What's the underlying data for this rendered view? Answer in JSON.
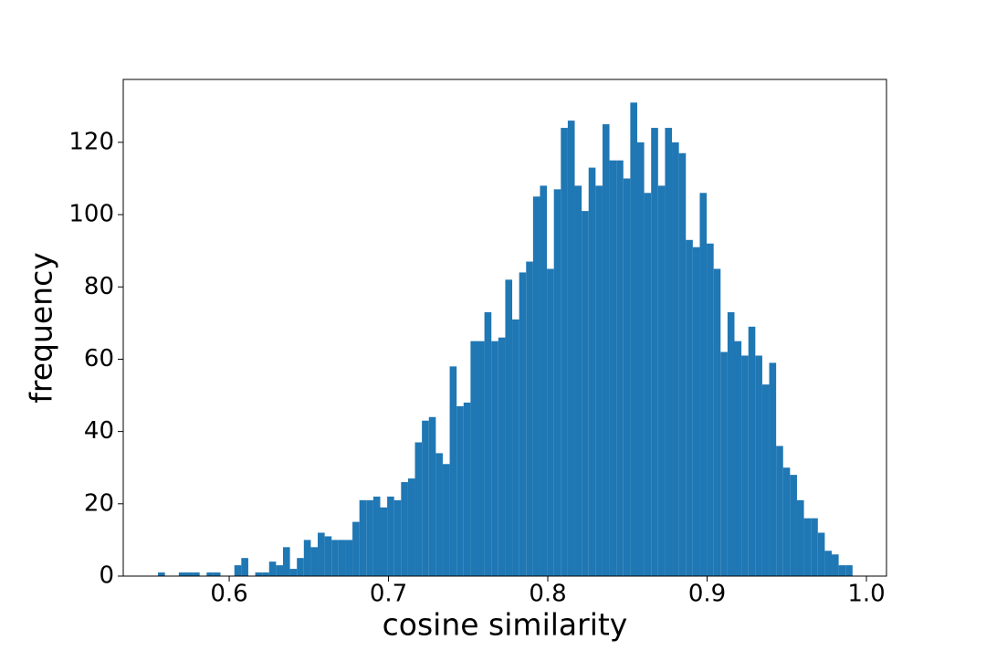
{
  "chart_data": {
    "type": "histogram",
    "xlabel": "cosine similarity",
    "ylabel": "frequency",
    "color": "#1f77b4",
    "grid": false,
    "bins": [
      0.5553,
      0.55966,
      0.56402,
      0.56838,
      0.57274,
      0.5771,
      0.58146,
      0.58582,
      0.59018,
      0.59454,
      0.5989,
      0.60326,
      0.60762,
      0.61198,
      0.61634,
      0.6207,
      0.62506,
      0.62942,
      0.63378,
      0.63814,
      0.6425,
      0.64686,
      0.65122,
      0.65558,
      0.65994,
      0.6643,
      0.66866,
      0.67302,
      0.67738,
      0.68174,
      0.6861,
      0.69046,
      0.69482,
      0.69918,
      0.70354,
      0.7079,
      0.71226,
      0.71662,
      0.72098,
      0.72534,
      0.7297,
      0.73406,
      0.73842,
      0.74278,
      0.74714,
      0.7515,
      0.75586,
      0.76022,
      0.76458,
      0.76894,
      0.7733,
      0.77766,
      0.78202,
      0.78638,
      0.79074,
      0.7951,
      0.79946,
      0.80382,
      0.80818,
      0.81254,
      0.8169,
      0.82126,
      0.82562,
      0.82998,
      0.83434,
      0.8387,
      0.84306,
      0.84742,
      0.85178,
      0.85614,
      0.8605,
      0.86486,
      0.86922,
      0.87358,
      0.87794,
      0.8823,
      0.88666,
      0.89102,
      0.89538,
      0.89974,
      0.9041,
      0.90846,
      0.91282,
      0.91718,
      0.92154,
      0.9259,
      0.93026,
      0.93462,
      0.93898,
      0.94334,
      0.9477,
      0.95206,
      0.95642,
      0.96078,
      0.96514,
      0.9695,
      0.97386,
      0.97822,
      0.98258,
      0.98694,
      0.9913
    ],
    "values": [
      1,
      0,
      0,
      1,
      1,
      1,
      0,
      1,
      1,
      0,
      0,
      3,
      5,
      0,
      1,
      1,
      4,
      3,
      8,
      2,
      5,
      10,
      8,
      12,
      11,
      10,
      10,
      10,
      15,
      21,
      21,
      22,
      19,
      22,
      21,
      26,
      27,
      37,
      43,
      44,
      34,
      31,
      58,
      47,
      48,
      65,
      65,
      73,
      65,
      66,
      82,
      71,
      84,
      87,
      105,
      108,
      85,
      107,
      124,
      126,
      108,
      101,
      113,
      108,
      125,
      115,
      115,
      110,
      131,
      120,
      106,
      124,
      108,
      124,
      120,
      117,
      93,
      91,
      106,
      92,
      85,
      62,
      73,
      65,
      61,
      69,
      61,
      53,
      59,
      36,
      30,
      28,
      21,
      16,
      16,
      12,
      7,
      6,
      3,
      3
    ],
    "xlim": [
      0.5335,
      1.0126
    ],
    "ylim": [
      0,
      137.4
    ],
    "xticks": [
      0.6,
      0.7,
      0.8,
      0.9,
      {
        "value": 1,
        "label": "1.0"
      }
    ],
    "yticks": [
      0,
      20,
      40,
      60,
      80,
      100,
      120
    ]
  }
}
